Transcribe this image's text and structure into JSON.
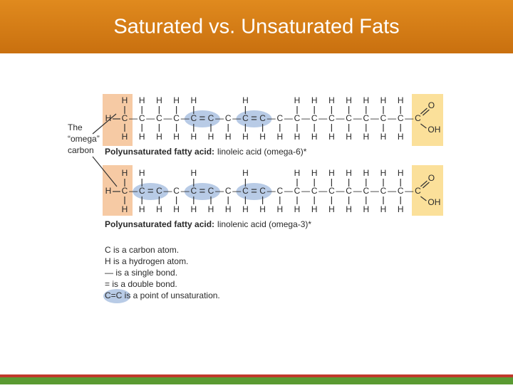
{
  "header": {
    "title": "Saturated vs. Unsaturated Fats"
  },
  "omega_label": [
    "The",
    "“omega”",
    "carbon"
  ],
  "molecules": [
    {
      "end_h": "H",
      "top": [
        "H",
        "H",
        "H",
        "H",
        "H",
        null,
        null,
        "H",
        null,
        null,
        "H",
        "H",
        "H",
        "H",
        "H",
        "H",
        "H",
        null
      ],
      "carbons": [
        "C",
        "C",
        "C",
        "C",
        "C",
        "C",
        "C",
        "C",
        "C",
        "C",
        "C",
        "C",
        "C",
        "C",
        "C",
        "C",
        "C",
        "C"
      ],
      "bonds": [
        "—",
        "—",
        "—",
        "—",
        "=",
        "—",
        "—",
        "=",
        "—",
        "—",
        "—",
        "—",
        "—",
        "—",
        "—",
        "—",
        "—"
      ],
      "bottom": [
        "H",
        "H",
        "H",
        "H",
        "H",
        "H",
        "H",
        "H",
        "H",
        "H",
        "H",
        "H",
        "H",
        "H",
        "H",
        "H",
        "H",
        null
      ],
      "oxygen": "O",
      "hydroxyl": "OH",
      "label_bold": "Polyunsaturated fatty acid:",
      "label": "linoleic acid (omega-6)*"
    },
    {
      "end_h": "H",
      "top": [
        "H",
        "H",
        null,
        null,
        "H",
        null,
        null,
        "H",
        null,
        null,
        "H",
        "H",
        "H",
        "H",
        "H",
        "H",
        "H",
        null
      ],
      "carbons": [
        "C",
        "C",
        "C",
        "C",
        "C",
        "C",
        "C",
        "C",
        "C",
        "C",
        "C",
        "C",
        "C",
        "C",
        "C",
        "C",
        "C",
        "C"
      ],
      "bonds": [
        "—",
        "=",
        "—",
        "—",
        "=",
        "—",
        "—",
        "=",
        "—",
        "—",
        "—",
        "—",
        "—",
        "—",
        "—",
        "—",
        "—"
      ],
      "bottom": [
        "H",
        "H",
        "H",
        "H",
        "H",
        "H",
        "H",
        "H",
        "H",
        "H",
        "H",
        "H",
        "H",
        "H",
        "H",
        "H",
        "H",
        null
      ],
      "oxygen": "O",
      "hydroxyl": "OH",
      "label_bold": "Polyunsaturated fatty acid:",
      "label": "linolenic acid (omega-3)*"
    }
  ],
  "legend": [
    "C is a carbon atom.",
    "H is a hydrogen atom.",
    "— is a single bond.",
    "= is a double bond.",
    "C=C is a point of unsaturation."
  ]
}
